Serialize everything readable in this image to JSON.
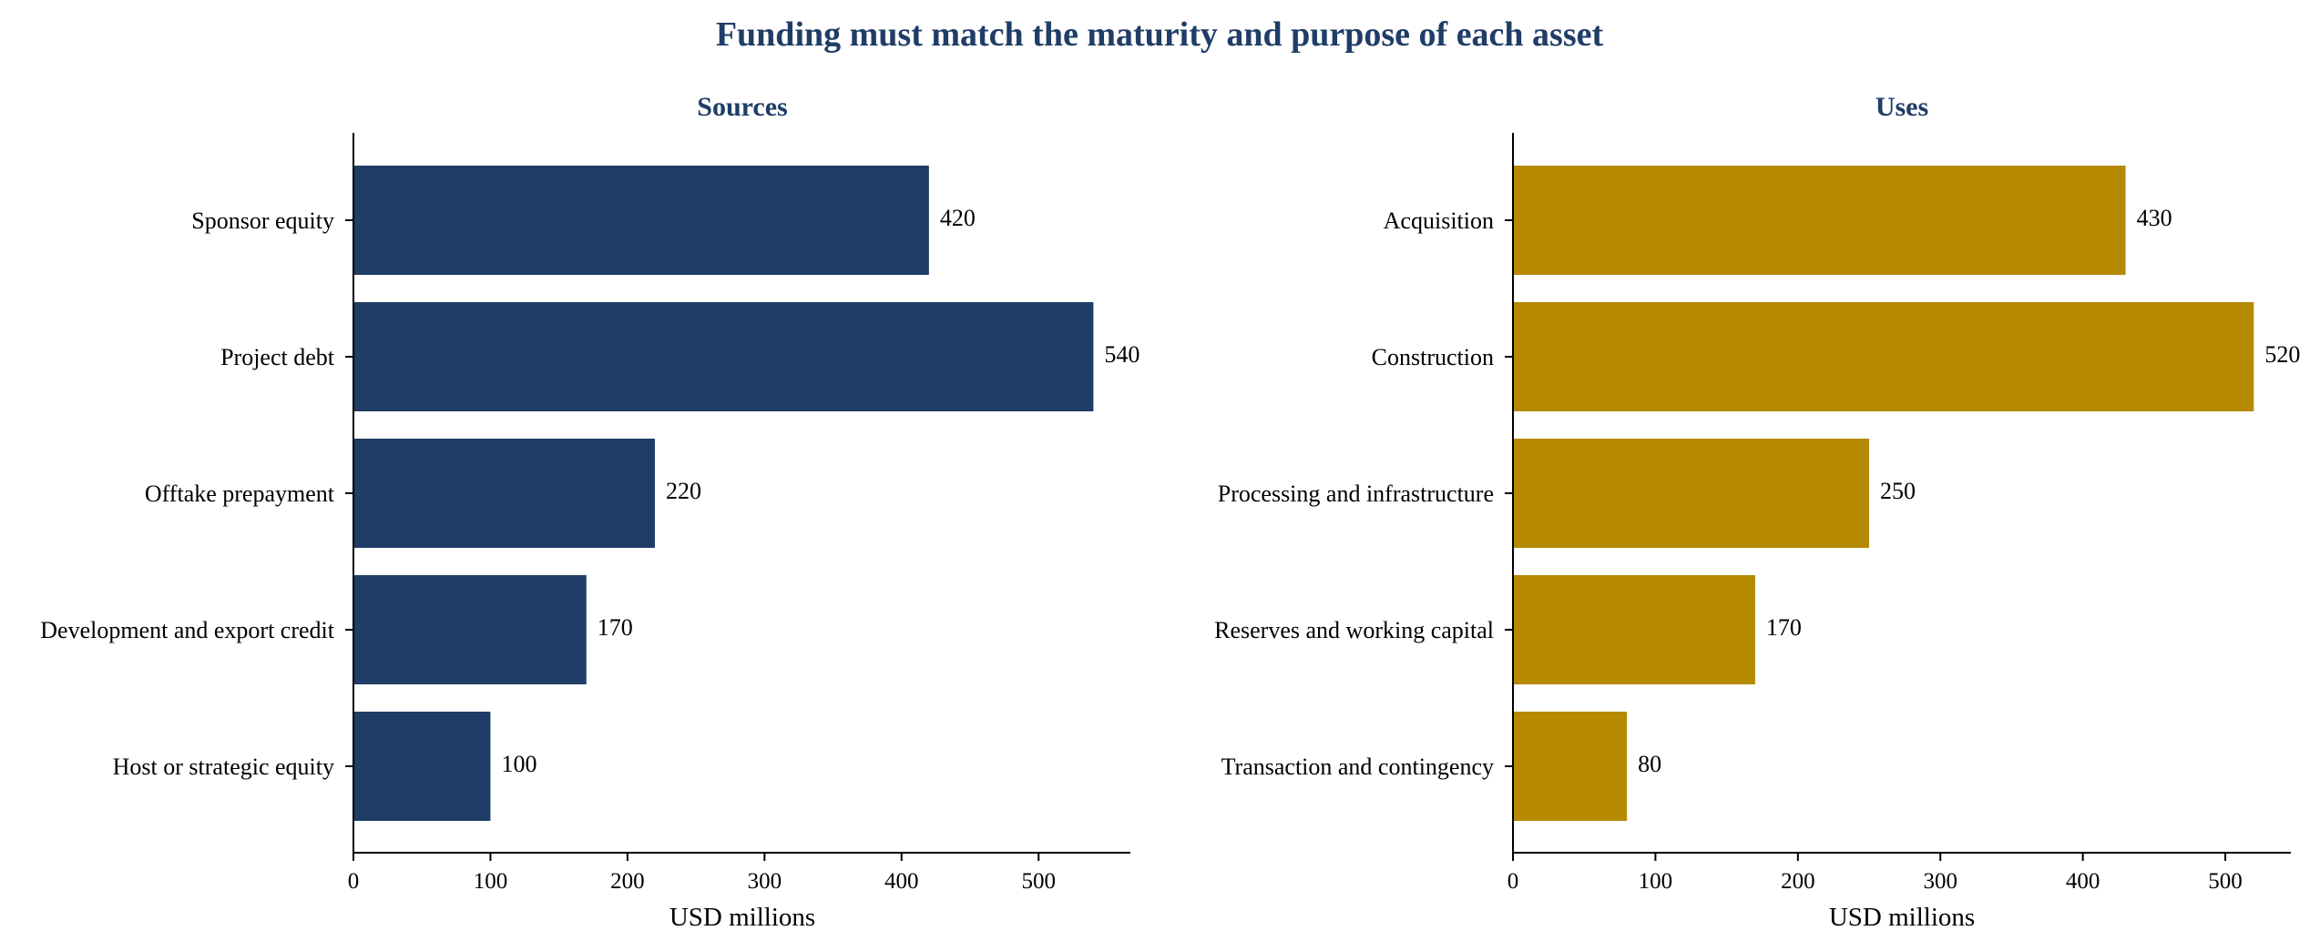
{
  "figure": {
    "title": "Funding must match the maturity and purpose of each asset"
  },
  "chart_data": [
    {
      "type": "bar",
      "orientation": "horizontal",
      "title": "Sources",
      "categories": [
        "Sponsor equity",
        "Project debt",
        "Offtake prepayment",
        "Development and export credit",
        "Host or strategic equity"
      ],
      "values": [
        420,
        540,
        220,
        170,
        100
      ],
      "xlabel": "USD millions",
      "ylabel": "",
      "xlim": [
        0,
        567
      ],
      "xticks": [
        0,
        100,
        200,
        300,
        400,
        500
      ],
      "color": "#1f3d66",
      "grid": false,
      "legend": "none"
    },
    {
      "type": "bar",
      "orientation": "horizontal",
      "title": "Uses",
      "categories": [
        "Acquisition",
        "Construction",
        "Processing and infrastructure",
        "Reserves and working capital",
        "Transaction and contingency"
      ],
      "values": [
        430,
        520,
        250,
        170,
        80
      ],
      "xlabel": "USD millions",
      "ylabel": "",
      "xlim": [
        0,
        546
      ],
      "xticks": [
        0,
        100,
        200,
        300,
        400,
        500
      ],
      "color": "#b58900",
      "grid": false,
      "legend": "none"
    }
  ]
}
